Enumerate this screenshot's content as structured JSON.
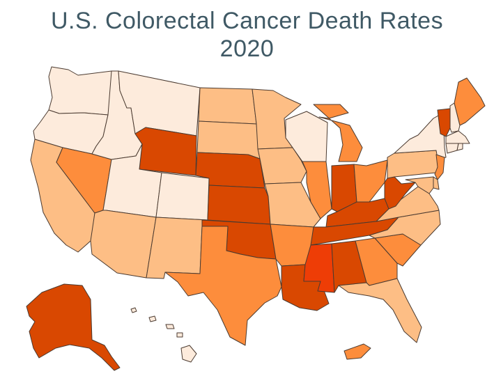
{
  "title": {
    "line1": "U.S. Colorectal Cancer Death Rates",
    "line2": "2020"
  },
  "palette": {
    "level1": "#fdebdc",
    "level2": "#fdbe85",
    "level3": "#fd8d3c",
    "level4": "#d94801",
    "level5": "#ee3d06"
  },
  "map_data": {
    "type": "choropleth",
    "regions": [
      {
        "state": "WA",
        "level": 1
      },
      {
        "state": "OR",
        "level": 1
      },
      {
        "state": "CA",
        "level": 2
      },
      {
        "state": "ID",
        "level": 1
      },
      {
        "state": "NV",
        "level": 3
      },
      {
        "state": "UT",
        "level": 1
      },
      {
        "state": "AZ",
        "level": 2
      },
      {
        "state": "MT",
        "level": 1
      },
      {
        "state": "WY",
        "level": 4
      },
      {
        "state": "CO",
        "level": 1
      },
      {
        "state": "NM",
        "level": 2
      },
      {
        "state": "ND",
        "level": 2
      },
      {
        "state": "SD",
        "level": 2
      },
      {
        "state": "NE",
        "level": 4
      },
      {
        "state": "KS",
        "level": 4
      },
      {
        "state": "OK",
        "level": 4
      },
      {
        "state": "TX",
        "level": 3
      },
      {
        "state": "MN",
        "level": 2
      },
      {
        "state": "IA",
        "level": 2
      },
      {
        "state": "MO",
        "level": 2
      },
      {
        "state": "AR",
        "level": 3
      },
      {
        "state": "LA",
        "level": 4
      },
      {
        "state": "WI",
        "level": 1
      },
      {
        "state": "IL",
        "level": 3
      },
      {
        "state": "MI",
        "level": 3
      },
      {
        "state": "IN",
        "level": 4
      },
      {
        "state": "OH",
        "level": 3
      },
      {
        "state": "KY",
        "level": 4
      },
      {
        "state": "TN",
        "level": 4
      },
      {
        "state": "MS",
        "level": 5
      },
      {
        "state": "AL",
        "level": 4
      },
      {
        "state": "GA",
        "level": 3
      },
      {
        "state": "FL",
        "level": 2
      },
      {
        "state": "SC",
        "level": 3
      },
      {
        "state": "NC",
        "level": 2
      },
      {
        "state": "VA",
        "level": 2
      },
      {
        "state": "WV",
        "level": 4
      },
      {
        "state": "PA",
        "level": 2
      },
      {
        "state": "NY",
        "level": 1
      },
      {
        "state": "VT",
        "level": 4
      },
      {
        "state": "NH",
        "level": 1
      },
      {
        "state": "ME",
        "level": 3
      },
      {
        "state": "MA",
        "level": 1
      },
      {
        "state": "CT",
        "level": 1
      },
      {
        "state": "RI",
        "level": 1
      },
      {
        "state": "NJ",
        "level": 3
      },
      {
        "state": "DE",
        "level": 2
      },
      {
        "state": "MD",
        "level": 2
      },
      {
        "state": "AK",
        "level": 4
      },
      {
        "state": "HI",
        "level": 1
      },
      {
        "state": "PR",
        "level": 3
      }
    ]
  }
}
